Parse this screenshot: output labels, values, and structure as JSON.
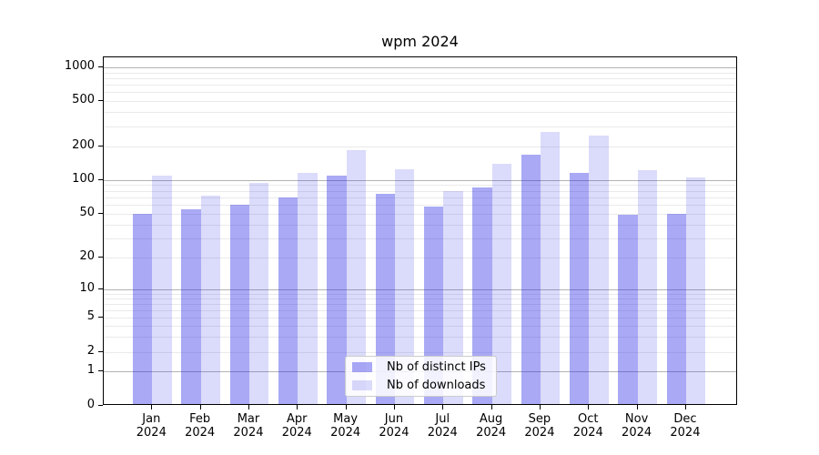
{
  "chart_data": {
    "type": "bar",
    "title": "wpm 2024",
    "categories": [
      "Jan",
      "Feb",
      "Mar",
      "Apr",
      "May",
      "Jun",
      "Jul",
      "Aug",
      "Sep",
      "Oct",
      "Nov",
      "Dec"
    ],
    "category_year": "2024",
    "series": [
      {
        "name": "Nb of distinct IPs",
        "color": "rgba(30,30,230,0.38)",
        "values": [
          50,
          55,
          60,
          70,
          110,
          75,
          58,
          85,
          166,
          116,
          49,
          50
        ]
      },
      {
        "name": "Nb of downloads",
        "color": "rgba(30,30,230,0.16)",
        "values": [
          110,
          72,
          94,
          116,
          184,
          124,
          80,
          138,
          266,
          248,
          121,
          105
        ]
      }
    ],
    "yticks": [
      0,
      1,
      2,
      5,
      10,
      20,
      50,
      100,
      200,
      500,
      1000
    ],
    "yscale": "symlog",
    "ylim": [
      0,
      1000
    ],
    "grid": true,
    "legend_position": "lower center",
    "colors": {
      "bar_dark": "#a9a9f4",
      "bar_light": "#dcdcfa",
      "grid_major": "#b3b3b3",
      "grid_minor": "#eaeaea"
    }
  }
}
